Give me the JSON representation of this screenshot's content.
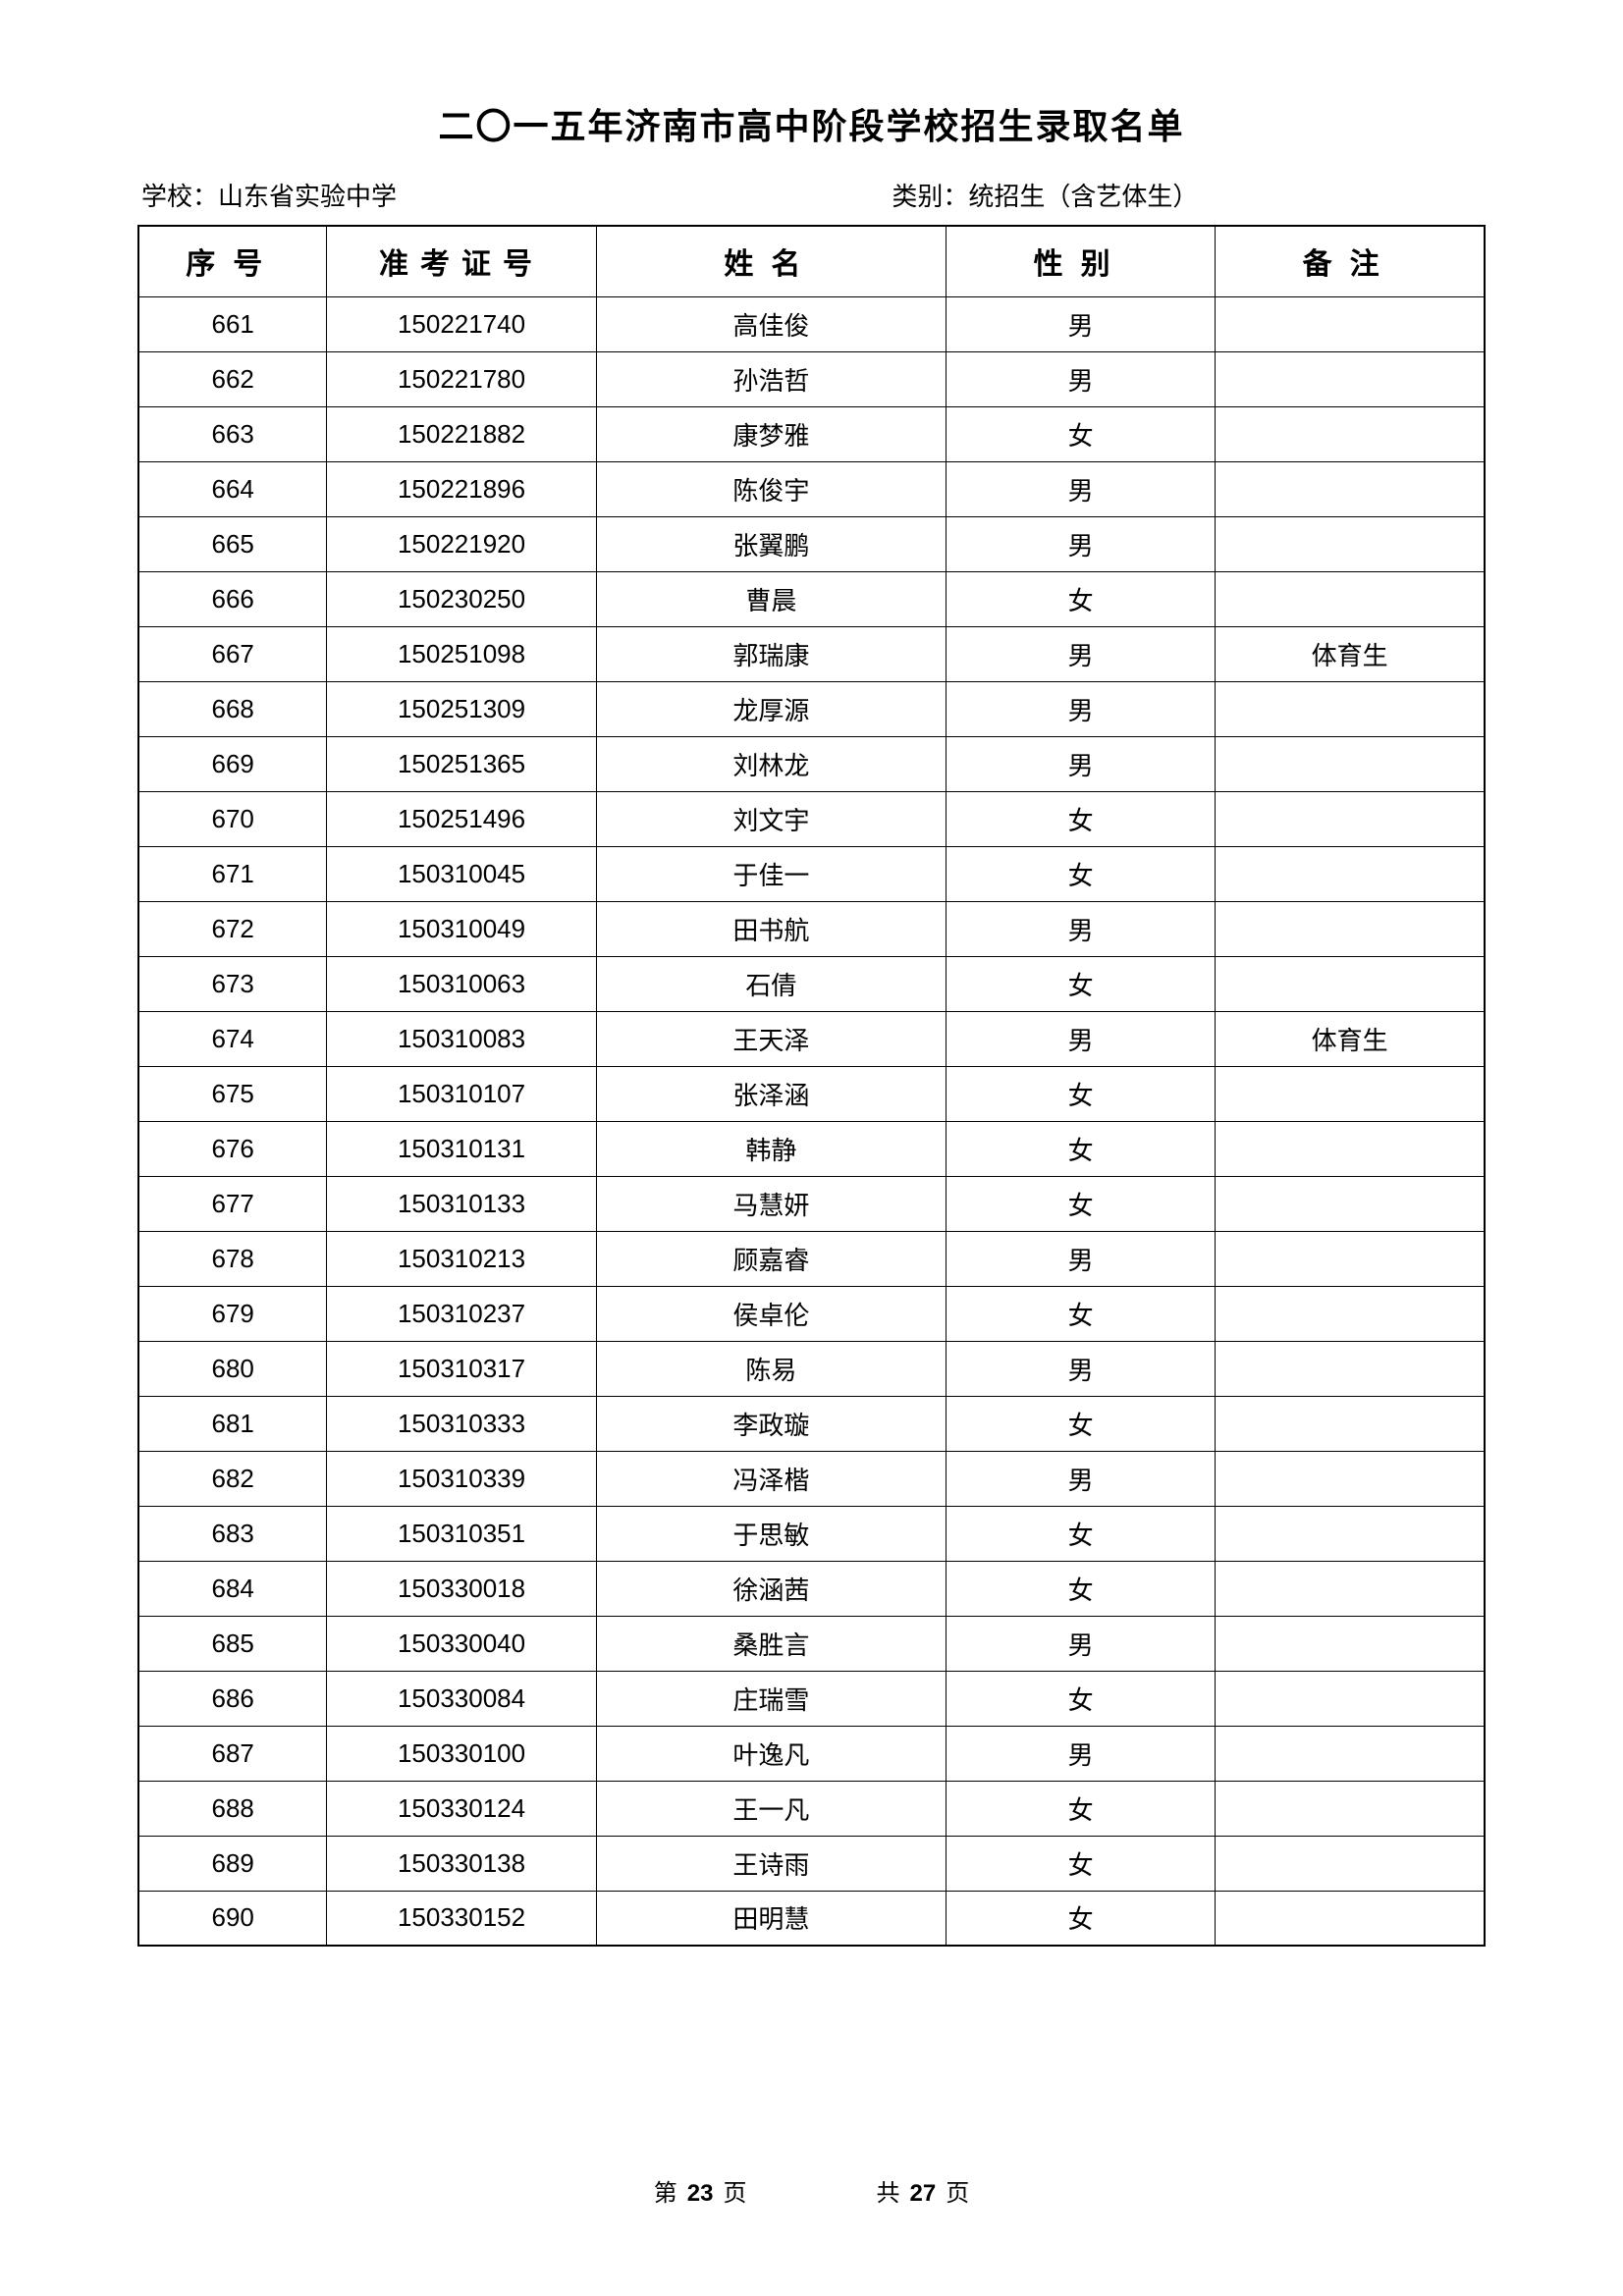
{
  "title": "二〇一五年济南市高中阶段学校招生录取名单",
  "school_label": "学校：",
  "school_name": "山东省实验中学",
  "category_label": "类别：",
  "category_name": "统招生（含艺体生）",
  "columns": {
    "seq": "序号",
    "id": "准考证号",
    "name": "姓名",
    "gender": "性别",
    "note": "备注"
  },
  "rows": [
    {
      "seq": "661",
      "id": "150221740",
      "name": "高佳俊",
      "gender": "男",
      "note": ""
    },
    {
      "seq": "662",
      "id": "150221780",
      "name": "孙浩哲",
      "gender": "男",
      "note": ""
    },
    {
      "seq": "663",
      "id": "150221882",
      "name": "康梦雅",
      "gender": "女",
      "note": ""
    },
    {
      "seq": "664",
      "id": "150221896",
      "name": "陈俊宇",
      "gender": "男",
      "note": ""
    },
    {
      "seq": "665",
      "id": "150221920",
      "name": "张翼鹏",
      "gender": "男",
      "note": ""
    },
    {
      "seq": "666",
      "id": "150230250",
      "name": "曹晨",
      "gender": "女",
      "note": ""
    },
    {
      "seq": "667",
      "id": "150251098",
      "name": "郭瑞康",
      "gender": "男",
      "note": "体育生"
    },
    {
      "seq": "668",
      "id": "150251309",
      "name": "龙厚源",
      "gender": "男",
      "note": ""
    },
    {
      "seq": "669",
      "id": "150251365",
      "name": "刘林龙",
      "gender": "男",
      "note": ""
    },
    {
      "seq": "670",
      "id": "150251496",
      "name": "刘文宇",
      "gender": "女",
      "note": ""
    },
    {
      "seq": "671",
      "id": "150310045",
      "name": "于佳一",
      "gender": "女",
      "note": ""
    },
    {
      "seq": "672",
      "id": "150310049",
      "name": "田书航",
      "gender": "男",
      "note": ""
    },
    {
      "seq": "673",
      "id": "150310063",
      "name": "石倩",
      "gender": "女",
      "note": ""
    },
    {
      "seq": "674",
      "id": "150310083",
      "name": "王天泽",
      "gender": "男",
      "note": "体育生"
    },
    {
      "seq": "675",
      "id": "150310107",
      "name": "张泽涵",
      "gender": "女",
      "note": ""
    },
    {
      "seq": "676",
      "id": "150310131",
      "name": "韩静",
      "gender": "女",
      "note": ""
    },
    {
      "seq": "677",
      "id": "150310133",
      "name": "马慧妍",
      "gender": "女",
      "note": ""
    },
    {
      "seq": "678",
      "id": "150310213",
      "name": "顾嘉睿",
      "gender": "男",
      "note": ""
    },
    {
      "seq": "679",
      "id": "150310237",
      "name": "侯卓伦",
      "gender": "女",
      "note": ""
    },
    {
      "seq": "680",
      "id": "150310317",
      "name": "陈易",
      "gender": "男",
      "note": ""
    },
    {
      "seq": "681",
      "id": "150310333",
      "name": "李政璇",
      "gender": "女",
      "note": ""
    },
    {
      "seq": "682",
      "id": "150310339",
      "name": "冯泽楷",
      "gender": "男",
      "note": ""
    },
    {
      "seq": "683",
      "id": "150310351",
      "name": "于思敏",
      "gender": "女",
      "note": ""
    },
    {
      "seq": "684",
      "id": "150330018",
      "name": "徐涵茜",
      "gender": "女",
      "note": ""
    },
    {
      "seq": "685",
      "id": "150330040",
      "name": "桑胜言",
      "gender": "男",
      "note": ""
    },
    {
      "seq": "686",
      "id": "150330084",
      "name": "庄瑞雪",
      "gender": "女",
      "note": ""
    },
    {
      "seq": "687",
      "id": "150330100",
      "name": "叶逸凡",
      "gender": "男",
      "note": ""
    },
    {
      "seq": "688",
      "id": "150330124",
      "name": "王一凡",
      "gender": "女",
      "note": ""
    },
    {
      "seq": "689",
      "id": "150330138",
      "name": "王诗雨",
      "gender": "女",
      "note": ""
    },
    {
      "seq": "690",
      "id": "150330152",
      "name": "田明慧",
      "gender": "女",
      "note": ""
    }
  ],
  "footer": {
    "page_label_prefix": "第",
    "page_current": "23",
    "page_label_suffix": "页",
    "total_label_prefix": "共",
    "page_total": "27",
    "total_label_suffix": "页"
  }
}
